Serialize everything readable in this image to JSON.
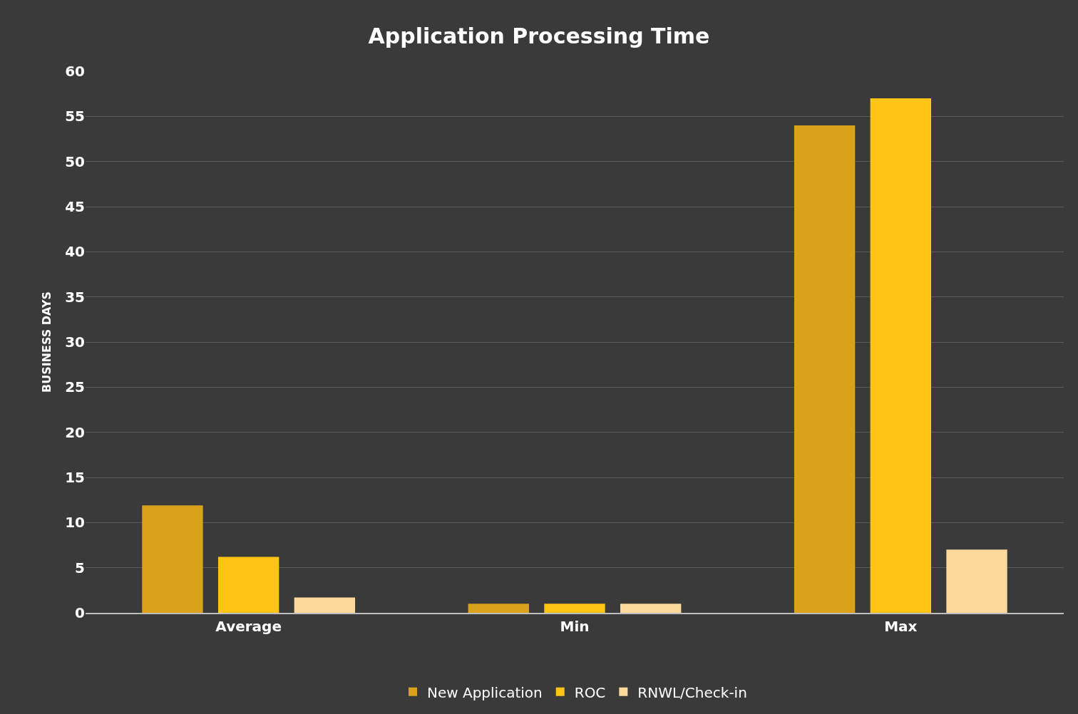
{
  "chart_data": {
    "type": "bar",
    "title": "Application Processing Time",
    "ylabel": "BUSINESS DAYS",
    "categories": [
      "Average",
      "Min",
      "Max"
    ],
    "series": [
      {
        "name": "New Application",
        "color": "#d9a21a",
        "values": [
          11.9,
          1,
          54
        ]
      },
      {
        "name": "ROC",
        "color": "#ffc414",
        "values": [
          6.2,
          1,
          57
        ]
      },
      {
        "name": "RNWL/Check-in",
        "color": "#fdd99b",
        "values": [
          1.7,
          1,
          7
        ]
      }
    ],
    "ylim": [
      0,
      60
    ],
    "yticks": [
      0,
      5,
      10,
      15,
      20,
      25,
      30,
      35,
      40,
      45,
      50,
      55,
      60
    ],
    "grid": "y",
    "legend": "bottom"
  }
}
